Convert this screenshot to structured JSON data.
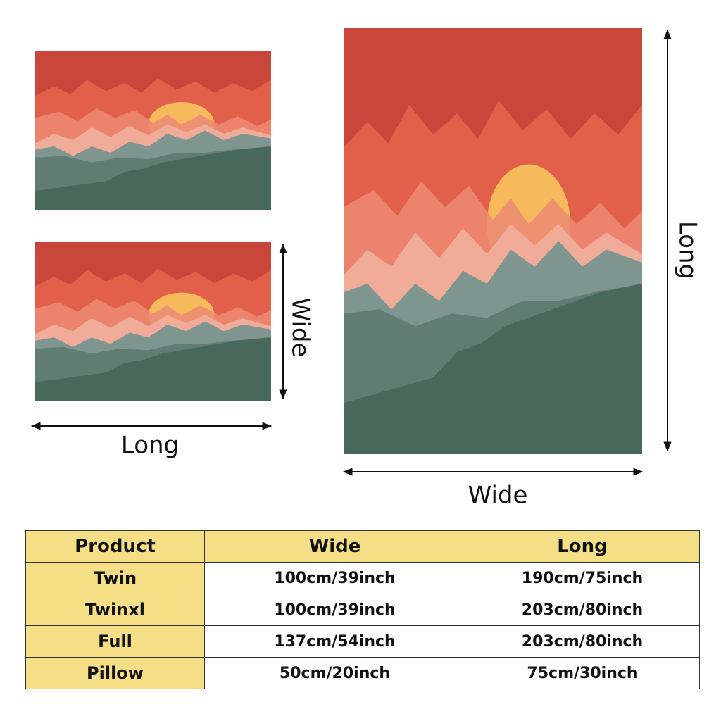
{
  "pillow_labels": {
    "wide": "Wide",
    "long": "Long"
  },
  "blanket_labels": {
    "long": "Long",
    "wide": "Wide"
  },
  "table": {
    "header": [
      "Product",
      "Wide",
      "Long"
    ],
    "rows": [
      [
        "Twin",
        "100cm/39inch",
        "190cm/75inch"
      ],
      [
        "Twinxl",
        "100cm/39inch",
        "203cm/80inch"
      ],
      [
        "Full",
        "137cm/54inch",
        "203cm/80inch"
      ],
      [
        "Pillow",
        "50cm/20inch",
        "75cm/30inch"
      ]
    ]
  }
}
